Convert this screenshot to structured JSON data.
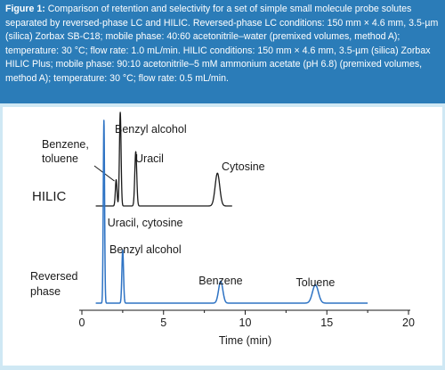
{
  "caption": {
    "label": "Figure 1:",
    "text": "Comparison of retention and selectivity for a set of simple small molecule probe solutes separated by reversed-phase LC and HILIC. Reversed-phase LC conditions: 150 mm × 4.6 mm, 3.5-µm (silica) Zorbax SB-C18; mobile phase: 40:60 acetonitrile–water (premixed volumes, method A); temperature: 30 °C; flow rate: 1.0 mL/min. HILIC conditions: 150 mm × 4.6 mm, 3.5-µm (silica) Zorbax HILIC Plus; mobile phase: 90:10 acetonitrile–5 mM ammonium acetate (pH 6.8) (premixed volumes, method A); temperature: 30 °C; flow rate: 0.5 mL/min."
  },
  "colors": {
    "caption_bg": "#2b7cb8",
    "frame_bg": "#cfe8f4",
    "hilic_trace": "#1a1a1a",
    "rp_trace": "#2e73c4"
  },
  "chart_data": [
    {
      "type": "line",
      "name": "HILIC",
      "trace_label": "HILIC",
      "xlim": [
        0,
        20
      ],
      "peaks": [
        {
          "t": 2.1,
          "h": 0.28,
          "w": 0.05
        },
        {
          "t": 2.35,
          "h": 1.0,
          "w": 0.05
        },
        {
          "t": 3.3,
          "h": 0.58,
          "w": 0.06
        },
        {
          "t": 8.3,
          "h": 0.35,
          "w": 0.14
        }
      ],
      "annotations": [
        {
          "id": "benzene_toluene",
          "lines": [
            "Benzene,",
            "toluene"
          ],
          "t": 2.1
        },
        {
          "id": "benzyl_alcohol",
          "lines": [
            "Benzyl alcohol"
          ],
          "t": 2.35
        },
        {
          "id": "uracil",
          "lines": [
            "Uracil"
          ],
          "t": 3.3
        },
        {
          "id": "cytosine",
          "lines": [
            "Cytosine"
          ],
          "t": 8.3
        }
      ]
    },
    {
      "type": "line",
      "name": "Reversed phase",
      "trace_label": [
        "Reversed",
        "phase"
      ],
      "xlabel": "Time (min)",
      "xlim": [
        0,
        20
      ],
      "xticks": [
        0,
        5,
        10,
        15,
        20
      ],
      "peaks": [
        {
          "t": 1.35,
          "h": 1.0,
          "w": 0.04
        },
        {
          "t": 2.5,
          "h": 0.29,
          "w": 0.05
        },
        {
          "t": 8.5,
          "h": 0.12,
          "w": 0.13
        },
        {
          "t": 14.3,
          "h": 0.1,
          "w": 0.18
        }
      ],
      "annotations": [
        {
          "id": "uracil_cytosine",
          "lines": [
            "Uracil, cytosine"
          ],
          "t": 1.35
        },
        {
          "id": "benzyl_alcohol",
          "lines": [
            "Benzyl alcohol"
          ],
          "t": 2.5
        },
        {
          "id": "benzene",
          "lines": [
            "Benzene"
          ],
          "t": 8.5
        },
        {
          "id": "toluene",
          "lines": [
            "Toluene"
          ],
          "t": 14.3
        }
      ]
    }
  ]
}
